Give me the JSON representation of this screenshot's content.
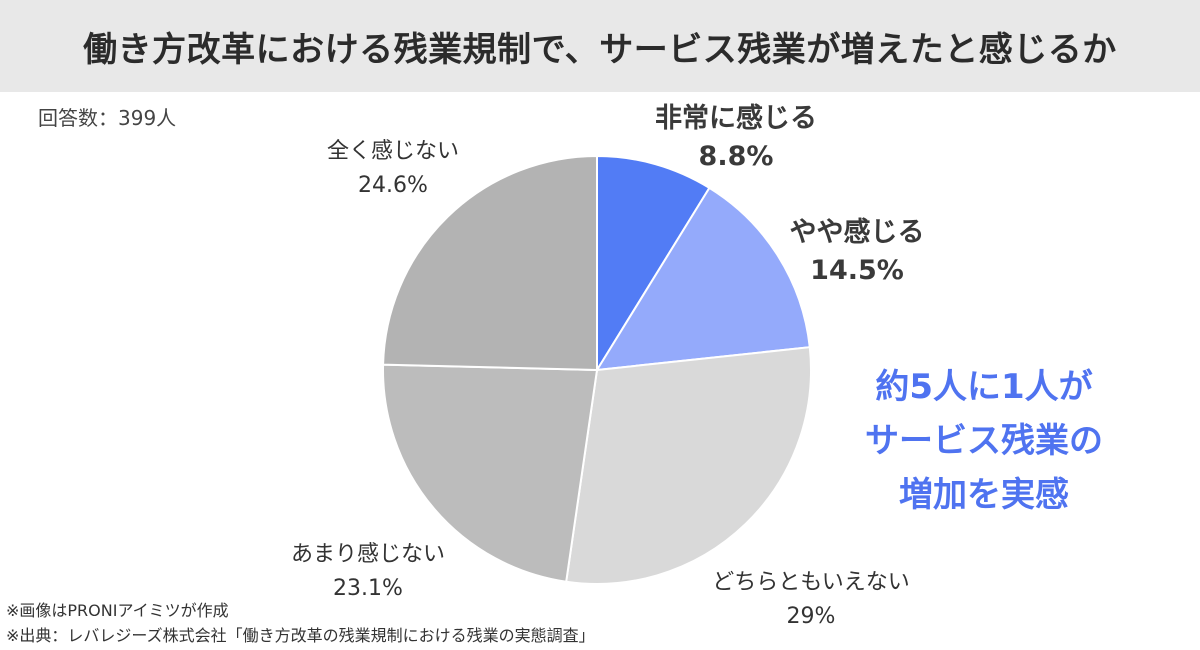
{
  "title": "働き方改革における残業規制で、サービス残業が増えたと感じるか",
  "respondents": "回答数：399人",
  "chart_data": {
    "type": "pie",
    "title": "働き方改革における残業規制で、サービス残業が増えたと感じるか",
    "note": "回答数：399人",
    "start_angle_deg": 0,
    "direction": "clockwise",
    "slices": [
      {
        "label": "非常に感じる",
        "value": 8.8,
        "display": "8.8%",
        "color": "#527cf5"
      },
      {
        "label": "やや感じる",
        "value": 14.5,
        "display": "14.5%",
        "color": "#94aafb"
      },
      {
        "label": "どちらともいえない",
        "value": 29,
        "display": "29%",
        "color": "#d9d9d9"
      },
      {
        "label": "あまり感じない",
        "value": 23.1,
        "display": "23.1%",
        "color": "#bcbcbc"
      },
      {
        "label": "全く感じない",
        "value": 24.6,
        "display": "24.6%",
        "color": "#b3b3b3"
      }
    ]
  },
  "callout": {
    "line1": "約5人に1人が",
    "line2": "サービス残業の",
    "line3": "増加を実感",
    "color": "#4f73f0"
  },
  "footnotes": {
    "image_credit": "※画像はPRONIアイミツが作成",
    "source": "※出典：レバレジーズ株式会社「働き方改革の残業規制における残業の実態調査」"
  }
}
